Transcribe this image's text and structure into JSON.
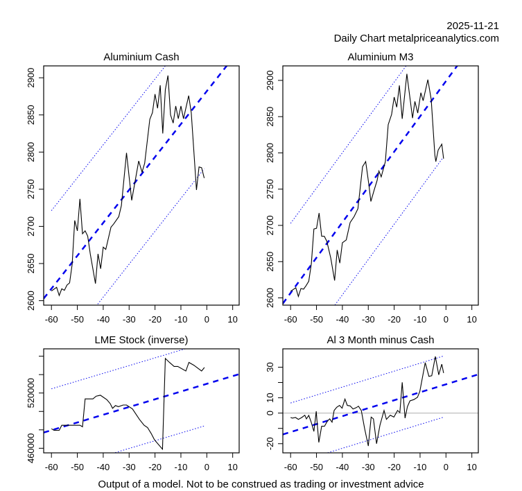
{
  "header": {
    "date": "2025-11-21",
    "subtitle": "Daily Chart metalpriceanalytics.com"
  },
  "footer": "Output of a model. Not to be construed as trading or investment advice",
  "colors": {
    "series": "#000000",
    "trend": "#0000ee",
    "band": "#0000ee",
    "zero_line": "#bebebe"
  },
  "chart_data": [
    {
      "id": "al-cash",
      "type": "line",
      "title": "Aluminium Cash",
      "xlabel": "",
      "ylabel": "",
      "xlim": [
        -63,
        12.5
      ],
      "ylim": [
        2594,
        2916
      ],
      "xticks": [
        -60,
        -50,
        -40,
        -30,
        -20,
        -10,
        0,
        10
      ],
      "yticks": [
        2600,
        2650,
        2700,
        2750,
        2800,
        2850,
        2900
      ],
      "yticklabels": [
        "2600",
        "2650",
        "2700",
        "2750",
        "2800",
        "2850",
        "2900"
      ],
      "series": {
        "name": "Aluminium Cash",
        "x": [
          -60,
          -58,
          -57,
          -56,
          -55,
          -54,
          -53,
          -52,
          -51,
          -50,
          -49,
          -48,
          -47,
          -46,
          -45,
          -43,
          -42,
          -41,
          -40,
          -39,
          -37,
          -36,
          -34,
          -33,
          -31,
          -29.5,
          -29,
          -26.3,
          -25,
          -24,
          -22,
          -21,
          -20,
          -19,
          -18,
          -17,
          -16,
          -15,
          -14,
          -13,
          -12,
          -11,
          -10,
          -9,
          -7,
          -6,
          -4,
          -3,
          -2,
          -1
        ],
        "y": [
          2613,
          2618,
          2607,
          2616,
          2614,
          2621,
          2624,
          2649,
          2708,
          2694,
          2737,
          2690,
          2694,
          2687,
          2663,
          2623,
          2663,
          2643,
          2672,
          2669,
          2699,
          2703,
          2713,
          2728,
          2799,
          2751,
          2735,
          2788,
          2773,
          2785,
          2844,
          2853,
          2878,
          2859,
          2890,
          2825,
          2884,
          2903,
          2850,
          2839,
          2862,
          2845,
          2862,
          2845,
          2876,
          2853,
          2749,
          2780,
          2779,
          2765
        ]
      },
      "trend": {
        "slope": 4.43,
        "intercept": 2882,
        "x_range": [
          -63,
          12.5
        ]
      },
      "band": {
        "upper_offset": 105,
        "lower_offset": -100,
        "x_range": [
          -60,
          -1
        ]
      }
    },
    {
      "id": "al-m3",
      "type": "line",
      "title": "Aluminium M3",
      "xlabel": "",
      "ylabel": "",
      "xlim": [
        -63,
        12.5
      ],
      "ylim": [
        2590,
        2920
      ],
      "xticks": [
        -60,
        -50,
        -40,
        -30,
        -20,
        -10,
        0,
        10
      ],
      "yticks": [
        2600,
        2650,
        2700,
        2750,
        2800,
        2850,
        2900
      ],
      "yticklabels": [
        "2600",
        "2650",
        "2700",
        "2750",
        "2800",
        "2850",
        "2900"
      ],
      "series": {
        "name": "Aluminium M3",
        "x": [
          -60,
          -58,
          -57,
          -56,
          -55,
          -54,
          -53,
          -52,
          -51,
          -50,
          -49,
          -48,
          -47,
          -46,
          -44.5,
          -43,
          -42,
          -41,
          -40,
          -38.5,
          -37,
          -35.5,
          -34,
          -32.2,
          -31,
          -29.8,
          -29,
          -27.7,
          -26.6,
          -25.9,
          -25,
          -23.4,
          -22.3,
          -21,
          -20,
          -19,
          -18,
          -16.9,
          -15.1,
          -12.9,
          -12,
          -10.9,
          -9.7,
          -8.8,
          -7,
          -5.7,
          -4.3,
          -3.9,
          -3,
          -1.6,
          -0.9
        ],
        "y": [
          2609,
          2614,
          2602,
          2613,
          2612,
          2617,
          2623,
          2647,
          2695,
          2696,
          2717,
          2685,
          2685,
          2678,
          2655,
          2624,
          2666,
          2648,
          2676,
          2680,
          2704,
          2712,
          2723,
          2781,
          2788,
          2757,
          2733,
          2749,
          2762,
          2775,
          2767,
          2788,
          2839,
          2853,
          2877,
          2863,
          2893,
          2847,
          2909,
          2848,
          2871,
          2855,
          2883,
          2872,
          2901,
          2874,
          2797,
          2788,
          2804,
          2812,
          2792
        ]
      },
      "trend": {
        "slope": 4.87,
        "intercept": 2899,
        "x_range": [
          -63,
          12.5
        ]
      },
      "band": {
        "upper_offset": 96,
        "lower_offset": -100,
        "x_range": [
          -60,
          -1
        ]
      }
    },
    {
      "id": "lme-stock",
      "type": "line",
      "title": "LME Stock (inverse)",
      "xlabel": "",
      "ylabel": "",
      "xlim": [
        -63,
        12.5
      ],
      "ylim": [
        455000,
        568000
      ],
      "xticks": [
        -60,
        -50,
        -40,
        -30,
        -20,
        -10,
        0,
        10
      ],
      "yticks": [
        460000,
        480000,
        500000,
        520000,
        540000,
        560000
      ],
      "yticklabels": [
        "460000",
        "",
        "",
        "520000",
        "",
        ""
      ],
      "series": {
        "name": "LME Stock (inverse)",
        "x": [
          -60,
          -59,
          -57,
          -56,
          -49,
          -48,
          -47,
          -44,
          -42.7,
          -41.1,
          -38.6,
          -37.3,
          -36.4,
          -35.3,
          -34.1,
          -32.3,
          -31,
          -28.7,
          -26,
          -24.2,
          -22.9,
          -21.5,
          -20.2,
          -17.1,
          -16,
          -14.4,
          -12.6,
          -11.2,
          -8.1,
          -6.9,
          -5,
          -2,
          -0.9
        ],
        "y": [
          481200,
          479500,
          479500,
          485000,
          485000,
          483300,
          513600,
          513600,
          516600,
          517600,
          512800,
          508500,
          503400,
          506400,
          505200,
          507000,
          507000,
          502700,
          491300,
          485000,
          482500,
          476200,
          469100,
          459000,
          557500,
          553200,
          548900,
          548900,
          543900,
          553200,
          550200,
          543900,
          547700
        ]
      },
      "trend": {
        "slope": 840,
        "intercept": 530000,
        "x_range": [
          -63,
          12.5
        ]
      },
      "band": {
        "upper_offset": 45000,
        "lower_offset": -45000,
        "x_range": [
          -60,
          -1
        ]
      }
    },
    {
      "id": "al-3m-minus-cash",
      "type": "line",
      "title": "Al 3 Month minus Cash",
      "xlabel": "",
      "ylabel": "",
      "xlim": [
        -63,
        12.5
      ],
      "ylim": [
        -26,
        42
      ],
      "xticks": [
        -60,
        -50,
        -40,
        -30,
        -20,
        -10,
        0,
        10
      ],
      "yticks": [
        -20,
        -10,
        0,
        10,
        20,
        30
      ],
      "yticklabels": [
        "-20",
        "",
        "0",
        "10",
        "",
        "30"
      ],
      "zero_line": true,
      "series": {
        "name": "Al 3 Month minus Cash",
        "x": [
          -60,
          -59.3,
          -58.1,
          -57,
          -55.7,
          -54.5,
          -53.9,
          -53,
          -52.1,
          -51,
          -50.1,
          -49.8,
          -49.1,
          -48,
          -46.9,
          -45.8,
          -44.9,
          -44,
          -43.2,
          -42.2,
          -41.1,
          -40.1,
          -39,
          -38.1,
          -37,
          -35.9,
          -34.7,
          -33.8,
          -32.7,
          -31.4,
          -30,
          -28.9,
          -28,
          -26.8,
          -25.5,
          -23.9,
          -23,
          -21.5,
          -20.1,
          -18.7,
          -17.8,
          -16.9,
          -15.8,
          -14.9,
          -13.9,
          -12.4,
          -11,
          -10.1,
          -8,
          -6.6,
          -5.5,
          -4.1,
          -2.8,
          -1.6,
          -0.9
        ],
        "y": [
          -2.9,
          -3.3,
          -2.9,
          -4.1,
          -2.9,
          -1.4,
          -3.8,
          -1.5,
          -5.6,
          -12,
          1.2,
          -5.3,
          -19.2,
          -8.6,
          -8.6,
          -5.3,
          -3.8,
          -5.9,
          1.7,
          3.8,
          5,
          3.2,
          9.2,
          5,
          4.7,
          2.7,
          3.5,
          4.5,
          1.7,
          -10.2,
          -21.5,
          -2.6,
          -3.8,
          -20,
          -7.9,
          1.7,
          -4.1,
          -1.4,
          -2.6,
          1.7,
          0.3,
          20.1,
          -3.3,
          4.2,
          8,
          8.8,
          10.3,
          14.1,
          33,
          24,
          24.4,
          37,
          25,
          32,
          26.2
        ]
      },
      "trend": {
        "slope": 0.52,
        "intercept": 18.8,
        "x_range": [
          -63,
          12.5
        ]
      },
      "band": {
        "upper_offset": 19,
        "lower_offset": -21,
        "x_range": [
          -60,
          -1
        ]
      }
    }
  ]
}
